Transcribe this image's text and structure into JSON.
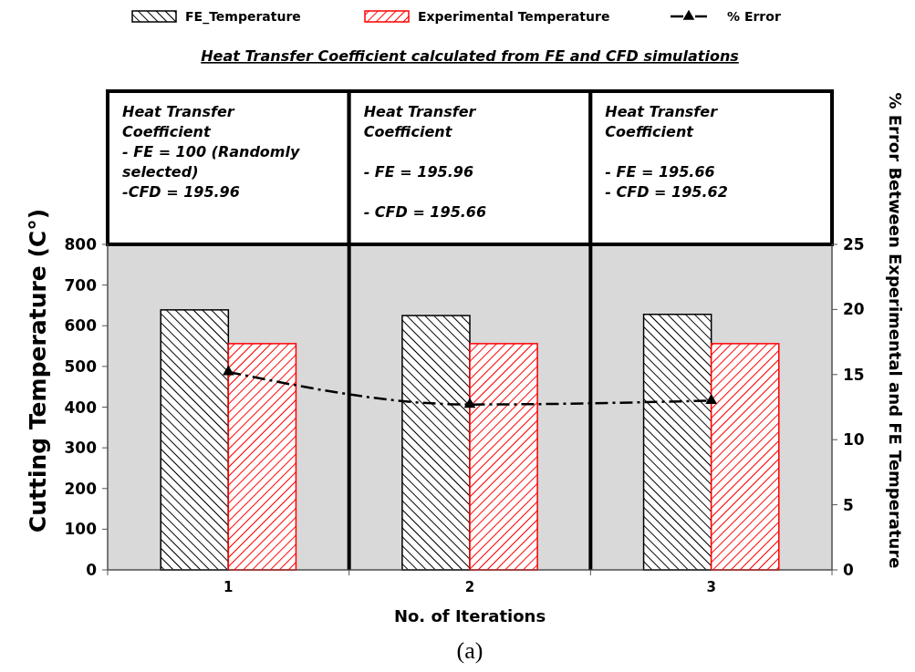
{
  "chart_data": {
    "type": "bar",
    "title": "Heat Transfer Coefficient calculated from FE and CFD simulations",
    "xlabel": "No. of Iterations",
    "ylabel": "Cutting Temperature (C°)",
    "y2label": "% Error Between Experimental and  FE  Temperature",
    "categories": [
      "1",
      "2",
      "3"
    ],
    "series": [
      {
        "name": "FE_Temperature",
        "color": "#000000",
        "values": [
          639,
          625,
          628
        ]
      },
      {
        "name": "Experimental Temperature",
        "color": "#ff0000",
        "values": [
          556,
          556,
          556
        ]
      },
      {
        "name": "% Error",
        "type": "line",
        "axis": "y2",
        "color": "#000000",
        "values": [
          15.2,
          12.7,
          13.0
        ],
        "marker": "triangle",
        "line_style": "dashed"
      }
    ],
    "ylim": [
      0,
      800
    ],
    "yticks": [
      0,
      100,
      200,
      300,
      400,
      500,
      600,
      700,
      800
    ],
    "y2lim": [
      0,
      25
    ],
    "y2ticks": [
      0,
      5,
      10,
      15,
      20,
      25
    ],
    "legend": "top",
    "annotations": [
      "Heat Transfer\nCoefficient\n- FE = 100  (Randomly\nselected)\n-CFD = 195.96",
      "Heat Transfer\nCoefficient\n\n- FE = 195.96\n\n- CFD =  195.66",
      "Heat Transfer\nCoefficient\n\n- FE = 195.66\n- CFD =  195.62",
      "(a)"
    ]
  }
}
